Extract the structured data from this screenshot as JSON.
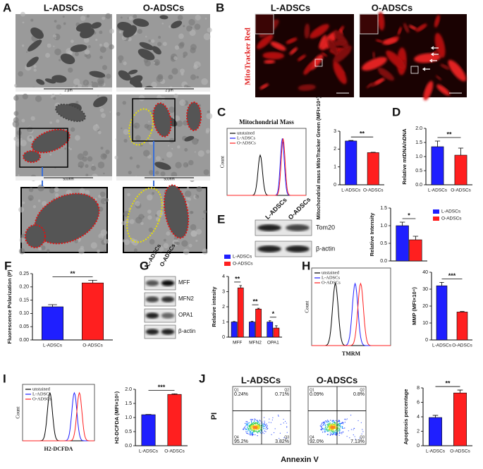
{
  "panels": {
    "A": {
      "letter": "A",
      "columns": [
        "L-ADSCs",
        "O-ADSCs"
      ],
      "scale_bars": [
        "2 μm",
        "2 μm",
        "500nm",
        "500nm"
      ]
    },
    "B": {
      "letter": "B",
      "columns": [
        "L-ADSCs",
        "O-ADSCs"
      ],
      "stain": "MitoTracker Red"
    },
    "C": {
      "letter": "C",
      "histogram_title": "Mitochondrial Mass",
      "legend": [
        "unstained",
        "L-ADSCs",
        "O-ADSCs"
      ],
      "y_label": "Count"
    },
    "D": {
      "letter": "D"
    },
    "E": {
      "letter": "E",
      "lanes": [
        "L-ADSCs",
        "O-ADSCs"
      ],
      "bands": [
        "Tom20",
        "β-actin"
      ]
    },
    "F": {
      "letter": "F"
    },
    "G": {
      "letter": "G",
      "lanes": [
        "L-ADSCs",
        "O-ADSCs"
      ],
      "bands": [
        "MFF",
        "MFN2",
        "OPA1",
        "β-actin"
      ]
    },
    "H": {
      "letter": "H",
      "legend": [
        "unstained",
        "L-ADSCs",
        "O-ADSCs"
      ],
      "x_label": "TMRM",
      "y_label": "Count"
    },
    "I": {
      "letter": "I",
      "legend": [
        "unstained",
        "L-ADSCs",
        "O-ADSCs"
      ],
      "x_label": "H2-DCFDA",
      "y_label": "Count"
    },
    "J": {
      "letter": "J",
      "columns": [
        "L-ADSCs",
        "O-ADSCs"
      ],
      "quadrant_names": [
        "Q1",
        "Q2",
        "Q4",
        "Q3"
      ],
      "quadrants": [
        [
          "0.24%",
          "0.71%",
          "95.2%",
          "3.82%"
        ],
        [
          "0.09%",
          "0.8%",
          "92.0%",
          "7.13%"
        ]
      ],
      "x_label": "Annexin V",
      "y_label": "PI"
    }
  },
  "chart_data": [
    {
      "type": "bar",
      "y_label": "Mitochondrial mass MitoTracker Green (MFI×10⁴)",
      "categories": [
        "L-ADSCs",
        "O-ADSCs"
      ],
      "values": [
        2.45,
        1.8
      ],
      "errors": [
        0.03,
        0.02
      ],
      "colors": [
        "#1f1fff",
        "#ff1f1f"
      ],
      "ylim": [
        0,
        3
      ],
      "yticks": [
        0,
        1,
        2,
        3
      ],
      "significance": "**"
    },
    {
      "type": "bar",
      "y_label": "Relative mtDNA/nDNA",
      "categories": [
        "L-ADSCs",
        "O-ADSCs"
      ],
      "values": [
        1.35,
        1.05
      ],
      "errors": [
        0.2,
        0.25
      ],
      "colors": [
        "#1f1fff",
        "#ff1f1f"
      ],
      "ylim": [
        0,
        2
      ],
      "yticks": [
        {
          "value": 0,
          "label": "0.0"
        },
        0.5,
        {
          "value": 1,
          "label": "1.0"
        },
        1.5,
        {
          "value": 2,
          "label": "2.0"
        }
      ],
      "significance": "**"
    },
    {
      "type": "bar",
      "y_label": "Relative Intensity",
      "categories": [
        null
      ],
      "series": [
        {
          "name": "L-ADSCs",
          "color": "#1f1fff",
          "values": [
            1.0
          ],
          "errors": [
            0.1
          ]
        },
        {
          "name": "O-ADSCs",
          "color": "#ff1f1f",
          "values": [
            0.6
          ],
          "errors": [
            0.1
          ]
        }
      ],
      "ylim": [
        0,
        1.5
      ],
      "yticks": [
        {
          "value": 0,
          "label": "0.0"
        },
        0.5,
        {
          "value": 1,
          "label": "1.0"
        },
        1.5
      ],
      "significance": "*",
      "legend": true
    },
    {
      "type": "bar",
      "y_label": "Fluorescence Polarization (P)",
      "categories": [
        "L-ADSCs",
        "O-ADSCs"
      ],
      "values": [
        0.125,
        0.215
      ],
      "errors": [
        0.008,
        0.01
      ],
      "colors": [
        "#1f1fff",
        "#ff1f1f"
      ],
      "ylim": [
        0,
        0.25
      ],
      "yticks": [
        {
          "value": 0,
          "label": "0.00"
        },
        0.05,
        {
          "value": 0.1,
          "label": "0.10"
        },
        0.15,
        {
          "value": 0.2,
          "label": "0.20"
        },
        0.25
      ],
      "significance": "**"
    },
    {
      "type": "bar",
      "y_label": "Relative intesity",
      "categories": [
        "MFF",
        "MFN2",
        "OPA1"
      ],
      "series": [
        {
          "name": "L-ADSCs",
          "color": "#1f1fff",
          "values": [
            1,
            1,
            1
          ],
          "errors": [
            0.03,
            0.04,
            0.08
          ]
        },
        {
          "name": "O-ADSCs",
          "color": "#ff1f1f",
          "values": [
            3.25,
            1.85,
            0.6
          ],
          "errors": [
            0.15,
            0.05,
            0.15
          ]
        }
      ],
      "ylim": [
        0,
        4
      ],
      "yticks": [
        0,
        1,
        2,
        3,
        4
      ],
      "significance": [
        "**",
        "**",
        "*"
      ],
      "legend": true
    },
    {
      "type": "bar",
      "y_label": "MMP (MFI×10⁴)",
      "categories": [
        "L-ADSCs",
        "O-ADSCs"
      ],
      "values": [
        32,
        16.5
      ],
      "errors": [
        2,
        0.3
      ],
      "colors": [
        "#1f1fff",
        "#ff1f1f"
      ],
      "ylim": [
        0,
        40
      ],
      "yticks": [
        0,
        10,
        20,
        30,
        40
      ],
      "significance": "***"
    },
    {
      "type": "bar",
      "y_label": "H2-DCFDA (MFI×10⁵)",
      "categories": [
        "L-ADSCs",
        "O-ADSCs"
      ],
      "values": [
        1.1,
        1.82
      ],
      "errors": [
        0.01,
        0.02
      ],
      "colors": [
        "#1f1fff",
        "#ff1f1f"
      ],
      "ylim": [
        0,
        2
      ],
      "yticks": [
        {
          "value": 0,
          "label": "0.0"
        },
        0.5,
        {
          "value": 1,
          "label": "1.0"
        },
        1.5,
        {
          "value": 2,
          "label": "2.0"
        }
      ],
      "significance": "***"
    },
    {
      "type": "bar",
      "y_label": "Apoptosis percentage",
      "categories": [
        "L-ADSCs",
        "O-ADSCs"
      ],
      "values": [
        3.9,
        7.3
      ],
      "errors": [
        0.3,
        0.4
      ],
      "colors": [
        "#1f1fff",
        "#ff1f1f"
      ],
      "ylim": [
        0,
        8
      ],
      "yticks": [
        0,
        2,
        4,
        6,
        8
      ],
      "significance": "**"
    }
  ]
}
